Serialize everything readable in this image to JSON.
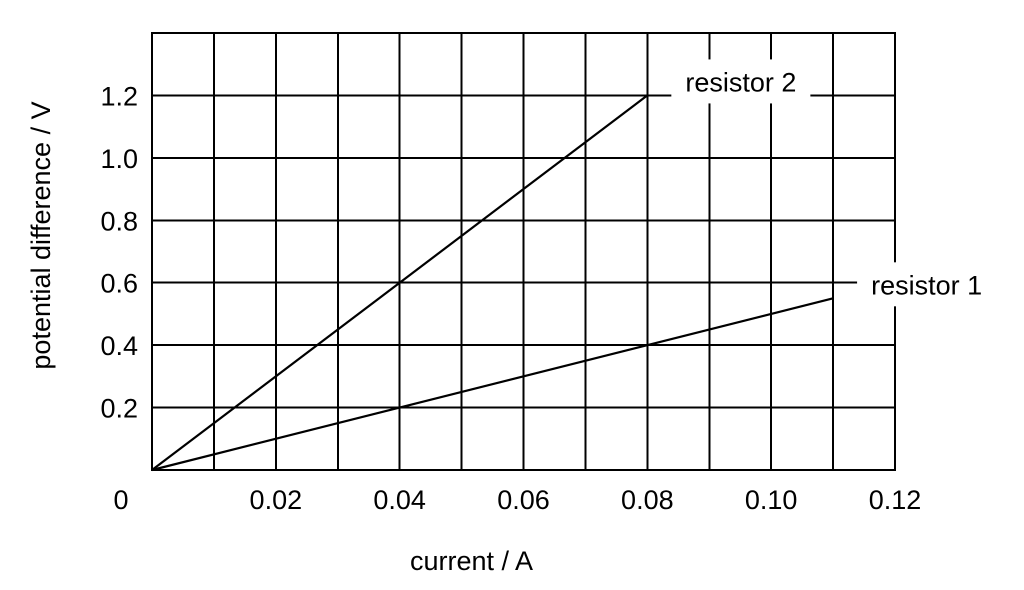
{
  "chart_data": {
    "type": "line",
    "title": "",
    "xlabel": "current / A",
    "ylabel": "potential difference / V",
    "xlim": [
      0,
      0.12
    ],
    "ylim": [
      0,
      1.4
    ],
    "x_ticks": [
      0.02,
      0.04,
      0.06,
      0.08,
      0.1,
      0.12
    ],
    "x_tick_labels": [
      "0.02",
      "0.04",
      "0.06",
      "0.08",
      "0.10",
      "0.12"
    ],
    "y_ticks": [
      0.2,
      0.4,
      0.6,
      0.8,
      1.0,
      1.2
    ],
    "y_tick_labels": [
      "0.2",
      "0.4",
      "0.6",
      "0.8",
      "1.0",
      "1.2"
    ],
    "origin_label": "0",
    "grid": true,
    "series": [
      {
        "name": "resistor 1",
        "x": [
          0,
          0.11
        ],
        "y": [
          0,
          0.55
        ]
      },
      {
        "name": "resistor 2",
        "x": [
          0,
          0.08
        ],
        "y": [
          0,
          1.2
        ]
      }
    ]
  }
}
